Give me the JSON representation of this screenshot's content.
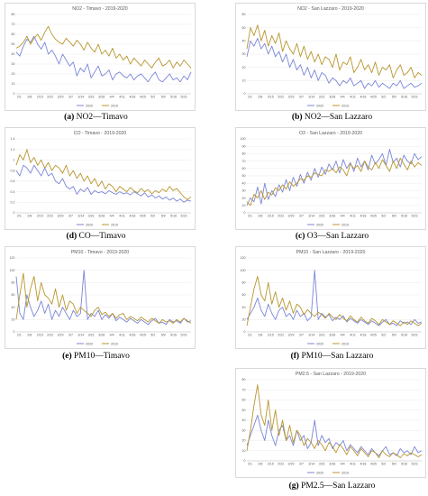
{
  "colors": {
    "y2020": "#7b86d6",
    "y2019": "#b8962e",
    "grid": "#e3e3e3",
    "axis": "#bfbfbf"
  },
  "chart_data": [
    {
      "id": "a",
      "type": "line",
      "title": "NO2 - Timavo - 2019-2020",
      "caption_tag": "(a)",
      "caption_text": "NO2—Timavo",
      "ylim": [
        0,
        80
      ],
      "yticks": [
        "0",
        "10",
        "20",
        "30",
        "40",
        "50",
        "60",
        "70",
        "80"
      ],
      "xticks": [
        "2/1",
        "2/8",
        "2/15",
        "2/22",
        "2/29",
        "3/7",
        "3/14",
        "3/21",
        "3/28",
        "4/4",
        "4/11",
        "4/18",
        "4/25",
        "5/2",
        "5/9",
        "5/16",
        "5/23"
      ],
      "series": [
        {
          "name": "2020",
          "color": "#7b86d6",
          "values": [
            42,
            38,
            48,
            55,
            52,
            58,
            50,
            45,
            52,
            40,
            44,
            38,
            30,
            40,
            34,
            28,
            32,
            18,
            26,
            22,
            30,
            16,
            22,
            28,
            18,
            20,
            24,
            14,
            20,
            22,
            18,
            16,
            20,
            14,
            18,
            20,
            16,
            12,
            18,
            22,
            14,
            12,
            16,
            20,
            14,
            16,
            12,
            18,
            14,
            22
          ]
        },
        {
          "name": "2019",
          "color": "#b8962e",
          "values": [
            46,
            48,
            52,
            58,
            50,
            56,
            60,
            54,
            62,
            68,
            60,
            55,
            52,
            50,
            56,
            52,
            48,
            54,
            50,
            44,
            52,
            46,
            42,
            50,
            40,
            44,
            38,
            46,
            36,
            40,
            34,
            38,
            30,
            36,
            32,
            28,
            34,
            30,
            26,
            32,
            36,
            28,
            30,
            34,
            26,
            32,
            28,
            34,
            30,
            26
          ]
        }
      ]
    },
    {
      "id": "b",
      "type": "line",
      "title": "NO2 - San Lazzaro - 2019-2020",
      "caption_tag": "(b)",
      "caption_text": "NO2—San Lazzaro",
      "ylim": [
        0,
        60
      ],
      "yticks": [
        "0",
        "10",
        "20",
        "30",
        "40",
        "50",
        "60"
      ],
      "xticks": [
        "2/1",
        "2/8",
        "2/15",
        "2/22",
        "2/29",
        "3/7",
        "3/14",
        "3/21",
        "3/28",
        "4/4",
        "4/11",
        "4/18",
        "4/25",
        "5/2",
        "5/9",
        "5/16",
        "5/23"
      ],
      "series": [
        {
          "name": "2020",
          "color": "#7b86d6",
          "values": [
            28,
            40,
            36,
            42,
            34,
            38,
            30,
            36,
            28,
            32,
            24,
            30,
            20,
            26,
            18,
            22,
            14,
            20,
            12,
            18,
            10,
            16,
            14,
            8,
            12,
            10,
            6,
            10,
            8,
            12,
            6,
            8,
            10,
            4,
            8,
            6,
            10,
            5,
            8,
            6,
            4,
            8,
            6,
            10,
            4,
            6,
            8,
            5,
            6,
            8
          ]
        },
        {
          "name": "2019",
          "color": "#b8962e",
          "values": [
            34,
            50,
            44,
            52,
            40,
            48,
            36,
            44,
            38,
            46,
            32,
            40,
            34,
            30,
            38,
            28,
            36,
            26,
            32,
            24,
            30,
            22,
            28,
            26,
            20,
            30,
            18,
            24,
            22,
            28,
            16,
            20,
            26,
            18,
            22,
            16,
            24,
            14,
            20,
            18,
            22,
            12,
            18,
            22,
            14,
            16,
            20,
            12,
            16,
            14
          ]
        }
      ]
    },
    {
      "id": "d",
      "type": "line",
      "title": "CO - Timavo - 2019-2020",
      "caption_tag": "(d)",
      "caption_text": "CO—Timavo",
      "ylim": [
        0,
        1.4
      ],
      "yticks": [
        "0",
        "0.2",
        "0.4",
        "0.6",
        "0.8",
        "1",
        "1.2",
        "1.4"
      ],
      "xticks": [
        "2/1",
        "2/8",
        "2/15",
        "2/22",
        "2/29",
        "3/7",
        "3/14",
        "3/21",
        "3/28",
        "4/4",
        "4/11",
        "4/18",
        "4/25",
        "5/2",
        "5/9",
        "5/16",
        "5/23"
      ],
      "series": [
        {
          "name": "2020",
          "color": "#7b86d6",
          "values": [
            0.8,
            0.7,
            0.9,
            0.85,
            0.75,
            0.9,
            0.8,
            0.7,
            0.85,
            0.7,
            0.75,
            0.6,
            0.55,
            0.65,
            0.5,
            0.45,
            0.5,
            0.35,
            0.45,
            0.4,
            0.48,
            0.35,
            0.42,
            0.38,
            0.4,
            0.36,
            0.42,
            0.38,
            0.35,
            0.4,
            0.36,
            0.38,
            0.34,
            0.4,
            0.36,
            0.32,
            0.38,
            0.3,
            0.34,
            0.28,
            0.32,
            0.26,
            0.3,
            0.24,
            0.28,
            0.22,
            0.26,
            0.2,
            0.24,
            0.22
          ]
        },
        {
          "name": "2019",
          "color": "#b8962e",
          "values": [
            0.9,
            1.1,
            1.0,
            1.2,
            0.95,
            1.05,
            0.9,
            1.0,
            0.85,
            0.95,
            0.8,
            0.9,
            0.85,
            0.75,
            0.9,
            0.7,
            0.8,
            0.65,
            0.75,
            0.6,
            0.7,
            0.55,
            0.65,
            0.5,
            0.6,
            0.45,
            0.55,
            0.5,
            0.4,
            0.5,
            0.45,
            0.4,
            0.48,
            0.42,
            0.38,
            0.46,
            0.4,
            0.44,
            0.36,
            0.42,
            0.38,
            0.45,
            0.4,
            0.5,
            0.42,
            0.46,
            0.38,
            0.3,
            0.25,
            0.3
          ]
        }
      ]
    },
    {
      "id": "c",
      "type": "line",
      "title": "O3 - San Lazzaro - 2019-2020",
      "caption_tag": "(c)",
      "caption_text": "O3—San Lazzaro",
      "ylim": [
        0,
        100
      ],
      "yticks": [
        "0",
        "10",
        "20",
        "30",
        "40",
        "50",
        "60",
        "70",
        "80",
        "90",
        "100"
      ],
      "xticks": [
        "2/1",
        "2/8",
        "2/15",
        "2/22",
        "2/29",
        "3/7",
        "3/14",
        "3/21",
        "3/28",
        "4/4",
        "4/11",
        "4/18",
        "4/25",
        "5/2",
        "5/9",
        "5/16",
        "5/23"
      ],
      "series": [
        {
          "name": "2020",
          "color": "#7b86d6",
          "values": [
            10,
            20,
            15,
            35,
            12,
            40,
            18,
            30,
            22,
            38,
            28,
            45,
            30,
            48,
            36,
            52,
            40,
            55,
            44,
            60,
            48,
            62,
            52,
            66,
            58,
            70,
            54,
            72,
            60,
            68,
            56,
            74,
            62,
            70,
            58,
            78,
            66,
            72,
            80,
            64,
            86,
            68,
            74,
            62,
            78,
            70,
            66,
            80,
            72,
            76
          ]
        },
        {
          "name": "2019",
          "color": "#b8962e",
          "values": [
            15,
            10,
            25,
            20,
            30,
            18,
            28,
            24,
            34,
            30,
            38,
            32,
            42,
            36,
            40,
            46,
            44,
            50,
            48,
            54,
            52,
            50,
            58,
            56,
            60,
            54,
            62,
            58,
            50,
            66,
            60,
            64,
            56,
            70,
            62,
            58,
            68,
            60,
            72,
            64,
            56,
            70,
            60,
            74,
            66,
            58,
            70,
            62,
            68,
            64
          ]
        }
      ]
    },
    {
      "id": "e",
      "type": "line",
      "title": "PM10 - Timavo - 2019-2020",
      "caption_tag": "(e)",
      "caption_text": "PM10—Timavo",
      "ylim": [
        0,
        120
      ],
      "yticks": [
        "0",
        "20",
        "40",
        "60",
        "80",
        "100",
        "120"
      ],
      "xticks": [
        "2/1",
        "2/8",
        "2/15",
        "2/22",
        "2/29",
        "3/7",
        "3/14",
        "3/21",
        "3/28",
        "4/4",
        "4/11",
        "4/18",
        "4/25",
        "5/2",
        "5/9",
        "5/16",
        "5/23"
      ],
      "series": [
        {
          "name": "2020",
          "color": "#7b86d6",
          "values": [
            90,
            30,
            20,
            60,
            40,
            25,
            35,
            50,
            30,
            45,
            20,
            35,
            25,
            40,
            30,
            20,
            35,
            25,
            30,
            100,
            20,
            30,
            25,
            35,
            20,
            28,
            22,
            30,
            18,
            24,
            20,
            16,
            22,
            18,
            14,
            20,
            16,
            12,
            18,
            22,
            14,
            16,
            12,
            20,
            16,
            18,
            14,
            22,
            16,
            18
          ]
        },
        {
          "name": "2019",
          "color": "#b8962e",
          "values": [
            20,
            60,
            95,
            40,
            70,
            90,
            50,
            80,
            60,
            55,
            45,
            70,
            40,
            60,
            35,
            50,
            45,
            30,
            40,
            35,
            30,
            25,
            35,
            40,
            28,
            32,
            25,
            30,
            22,
            28,
            30,
            20,
            25,
            22,
            18,
            24,
            20,
            16,
            22,
            18,
            14,
            20,
            16,
            18,
            14,
            20,
            16,
            22,
            18,
            14
          ]
        }
      ]
    },
    {
      "id": "f",
      "type": "line",
      "title": "PM10 - San Lazzaro - 2019-2020",
      "caption_tag": "(f)",
      "caption_text": "PM10—San Lazzaro",
      "ylim": [
        0,
        120
      ],
      "yticks": [
        "0",
        "20",
        "40",
        "60",
        "80",
        "100",
        "120"
      ],
      "xticks": [
        "2/1",
        "2/8",
        "2/15",
        "2/22",
        "2/29",
        "3/7",
        "3/14",
        "3/21",
        "3/28",
        "4/4",
        "4/11",
        "4/18",
        "4/25",
        "5/2",
        "5/9",
        "5/16",
        "5/23"
      ],
      "series": [
        {
          "name": "2020",
          "color": "#7b86d6",
          "values": [
            20,
            30,
            40,
            55,
            35,
            25,
            45,
            30,
            20,
            35,
            40,
            25,
            30,
            20,
            35,
            25,
            30,
            18,
            24,
            100,
            20,
            30,
            24,
            28,
            18,
            24,
            20,
            26,
            16,
            22,
            18,
            14,
            20,
            16,
            12,
            18,
            14,
            10,
            16,
            20,
            12,
            14,
            10,
            18,
            14,
            16,
            12,
            20,
            14,
            16
          ]
        },
        {
          "name": "2019",
          "color": "#b8962e",
          "values": [
            10,
            40,
            70,
            90,
            60,
            50,
            80,
            45,
            65,
            40,
            55,
            35,
            50,
            30,
            45,
            40,
            28,
            36,
            30,
            25,
            32,
            28,
            22,
            30,
            24,
            20,
            28,
            22,
            18,
            26,
            20,
            16,
            24,
            18,
            14,
            22,
            18,
            12,
            20,
            16,
            12,
            18,
            14,
            10,
            16,
            12,
            18,
            14,
            10,
            14
          ]
        }
      ]
    },
    {
      "id": "g",
      "type": "line",
      "title": "PM2.5 - San Lazzaro - 2019-2020",
      "caption_tag": "(g)",
      "caption_text": "PM2.5—San Lazzaro",
      "ylim": [
        0,
        80
      ],
      "yticks": [
        "0",
        "10",
        "20",
        "30",
        "40",
        "50",
        "60",
        "70",
        "80"
      ],
      "xticks": [
        "2/1",
        "2/8",
        "2/15",
        "2/22",
        "2/29",
        "3/7",
        "3/14",
        "3/21",
        "3/28",
        "4/4",
        "4/11",
        "4/18",
        "4/25",
        "5/2",
        "5/9",
        "5/16",
        "5/23"
      ],
      "series": [
        {
          "name": "2020",
          "color": "#7b86d6",
          "values": [
            15,
            25,
            35,
            45,
            30,
            20,
            40,
            25,
            15,
            30,
            35,
            20,
            25,
            15,
            30,
            20,
            25,
            12,
            18,
            40,
            15,
            25,
            18,
            22,
            12,
            18,
            15,
            20,
            10,
            16,
            12,
            8,
            14,
            10,
            6,
            12,
            8,
            5,
            10,
            14,
            6,
            8,
            5,
            12,
            8,
            10,
            6,
            14,
            8,
            10
          ]
        },
        {
          "name": "2019",
          "color": "#b8962e",
          "values": [
            10,
            30,
            55,
            75,
            45,
            35,
            60,
            30,
            50,
            25,
            40,
            20,
            35,
            18,
            30,
            25,
            15,
            22,
            18,
            12,
            20,
            16,
            10,
            18,
            14,
            8,
            16,
            12,
            6,
            14,
            10,
            5,
            12,
            8,
            4,
            10,
            8,
            3,
            10,
            6,
            4,
            8,
            6,
            3,
            7,
            5,
            8,
            6,
            4,
            6
          ]
        }
      ]
    }
  ]
}
